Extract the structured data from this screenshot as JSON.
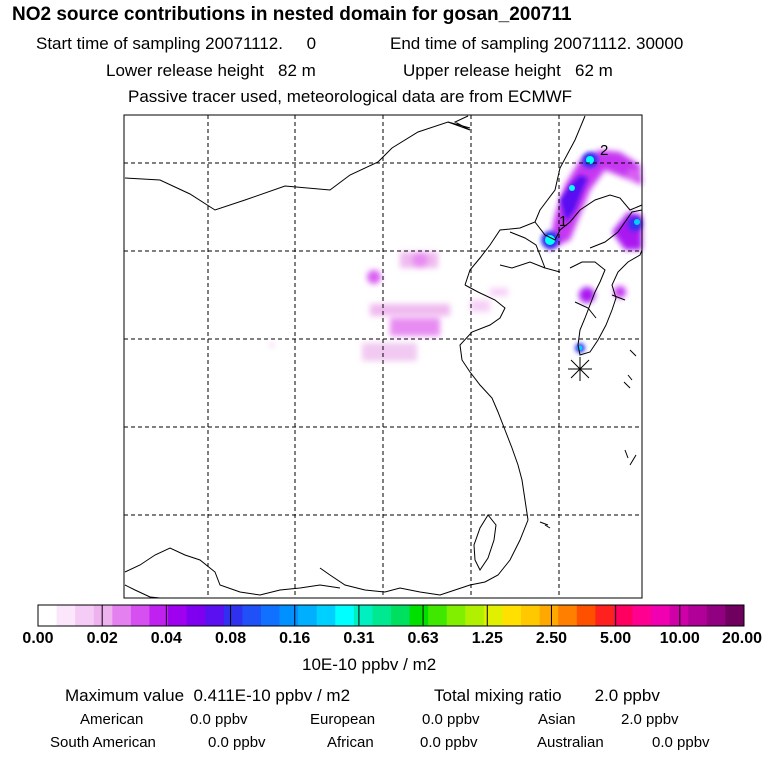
{
  "header": {
    "title": "NO2 source contributions in nested domain for gosan_200711",
    "start": "Start time of sampling 20071112.     0",
    "end": "End time of sampling 20071112. 30000",
    "lower": "Lower release height   82 m",
    "upper": "Upper release height   62 m",
    "note": "Passive tracer used, meteorological data are from ECMWF"
  },
  "map": {
    "labels": [
      "1",
      "2"
    ],
    "station_marker": "asterisk-icon"
  },
  "colorbar": {
    "colors": [
      "#ffffff",
      "#fbe6fb",
      "#f5ccf5",
      "#eeb3ee",
      "#e580f0",
      "#d64ff0",
      "#c020f0",
      "#a000f0",
      "#7f00f0",
      "#5a10f0",
      "#3030f0",
      "#2050f8",
      "#1070ff",
      "#0090ff",
      "#00b0ff",
      "#00d0ff",
      "#00ffff",
      "#00f0c0",
      "#00e890",
      "#00e060",
      "#00e000",
      "#40e800",
      "#80f000",
      "#b0f000",
      "#e0f000",
      "#ffe000",
      "#ffc800",
      "#ffa800",
      "#ff8000",
      "#ff5000",
      "#ff2020",
      "#ff0060",
      "#ff0090",
      "#f000b0",
      "#d000a8",
      "#b00098",
      "#900080",
      "#700060"
    ],
    "ticks": [
      "0.00",
      "0.02",
      "0.04",
      "0.08",
      "0.16",
      "0.31",
      "0.63",
      "1.25",
      "2.50",
      "5.00",
      "10.00",
      "20.00"
    ],
    "unit": "10E-10 ppbv / m2"
  },
  "summary": {
    "max": "Maximum value  0.411E-10 ppbv / m2",
    "total_label": "Total mixing ratio       2.0 ppbv",
    "regions": [
      {
        "name": "American",
        "value": "0.0 ppbv"
      },
      {
        "name": "European",
        "value": "0.0 ppbv"
      },
      {
        "name": "Asian",
        "value": "2.0 ppbv"
      },
      {
        "name": "South American",
        "value": "0.0 ppbv"
      },
      {
        "name": "African",
        "value": "0.0 ppbv"
      },
      {
        "name": "Australian",
        "value": "0.0 ppbv"
      }
    ]
  }
}
